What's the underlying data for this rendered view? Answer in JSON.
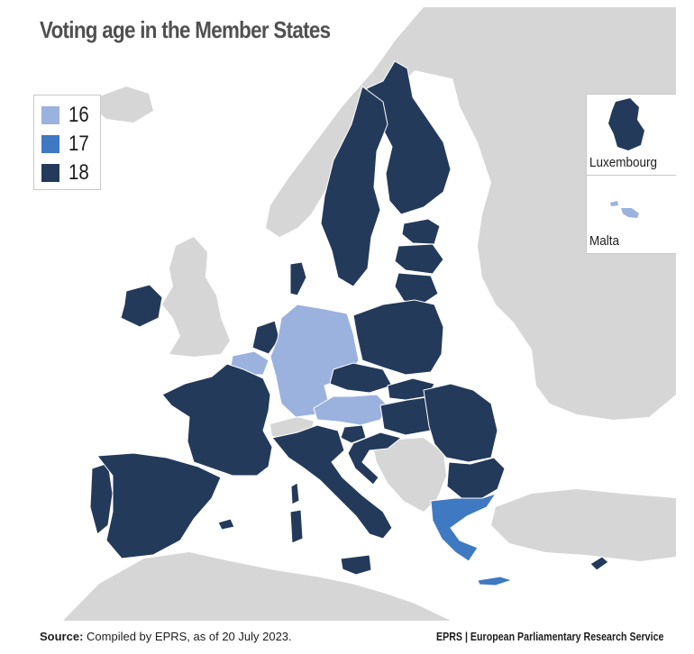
{
  "title": "Voting age in the Member States",
  "legend": [
    {
      "label": "16",
      "color": "#9bb2de"
    },
    {
      "label": "17",
      "color": "#3f79c2"
    },
    {
      "label": "18",
      "color": "#233a5b"
    }
  ],
  "colors": {
    "sea": "#ffffff",
    "non_eu_land": "#d6d6d6",
    "eu_16": "#9bb2de",
    "eu_17": "#3f79c2",
    "eu_18": "#233a5b"
  },
  "insets": {
    "luxembourg": {
      "label": "Luxembourg",
      "voting_age": "18"
    },
    "malta": {
      "label": "Malta",
      "voting_age": "16"
    }
  },
  "countries": {
    "Portugal": "18",
    "Spain": "18",
    "France": "18",
    "Ireland": "18",
    "Belgium": "16",
    "Netherlands": "18",
    "Luxembourg": "18",
    "Germany": "16",
    "Denmark": "18",
    "Austria": "16",
    "Italy": "18",
    "Slovenia": "18",
    "Croatia": "18",
    "Czechia": "18",
    "Slovakia": "18",
    "Hungary": "18",
    "Poland": "18",
    "Lithuania": "18",
    "Latvia": "18",
    "Estonia": "18",
    "Finland": "18",
    "Sweden": "18",
    "Romania": "18",
    "Bulgaria": "18",
    "Greece": "17",
    "Cyprus": "18",
    "Malta": "16"
  },
  "source": {
    "label": "Source:",
    "text": "Compiled by EPRS, as of 20 July 2023."
  },
  "publisher": "EPRS | European Parliamentary Research Service"
}
